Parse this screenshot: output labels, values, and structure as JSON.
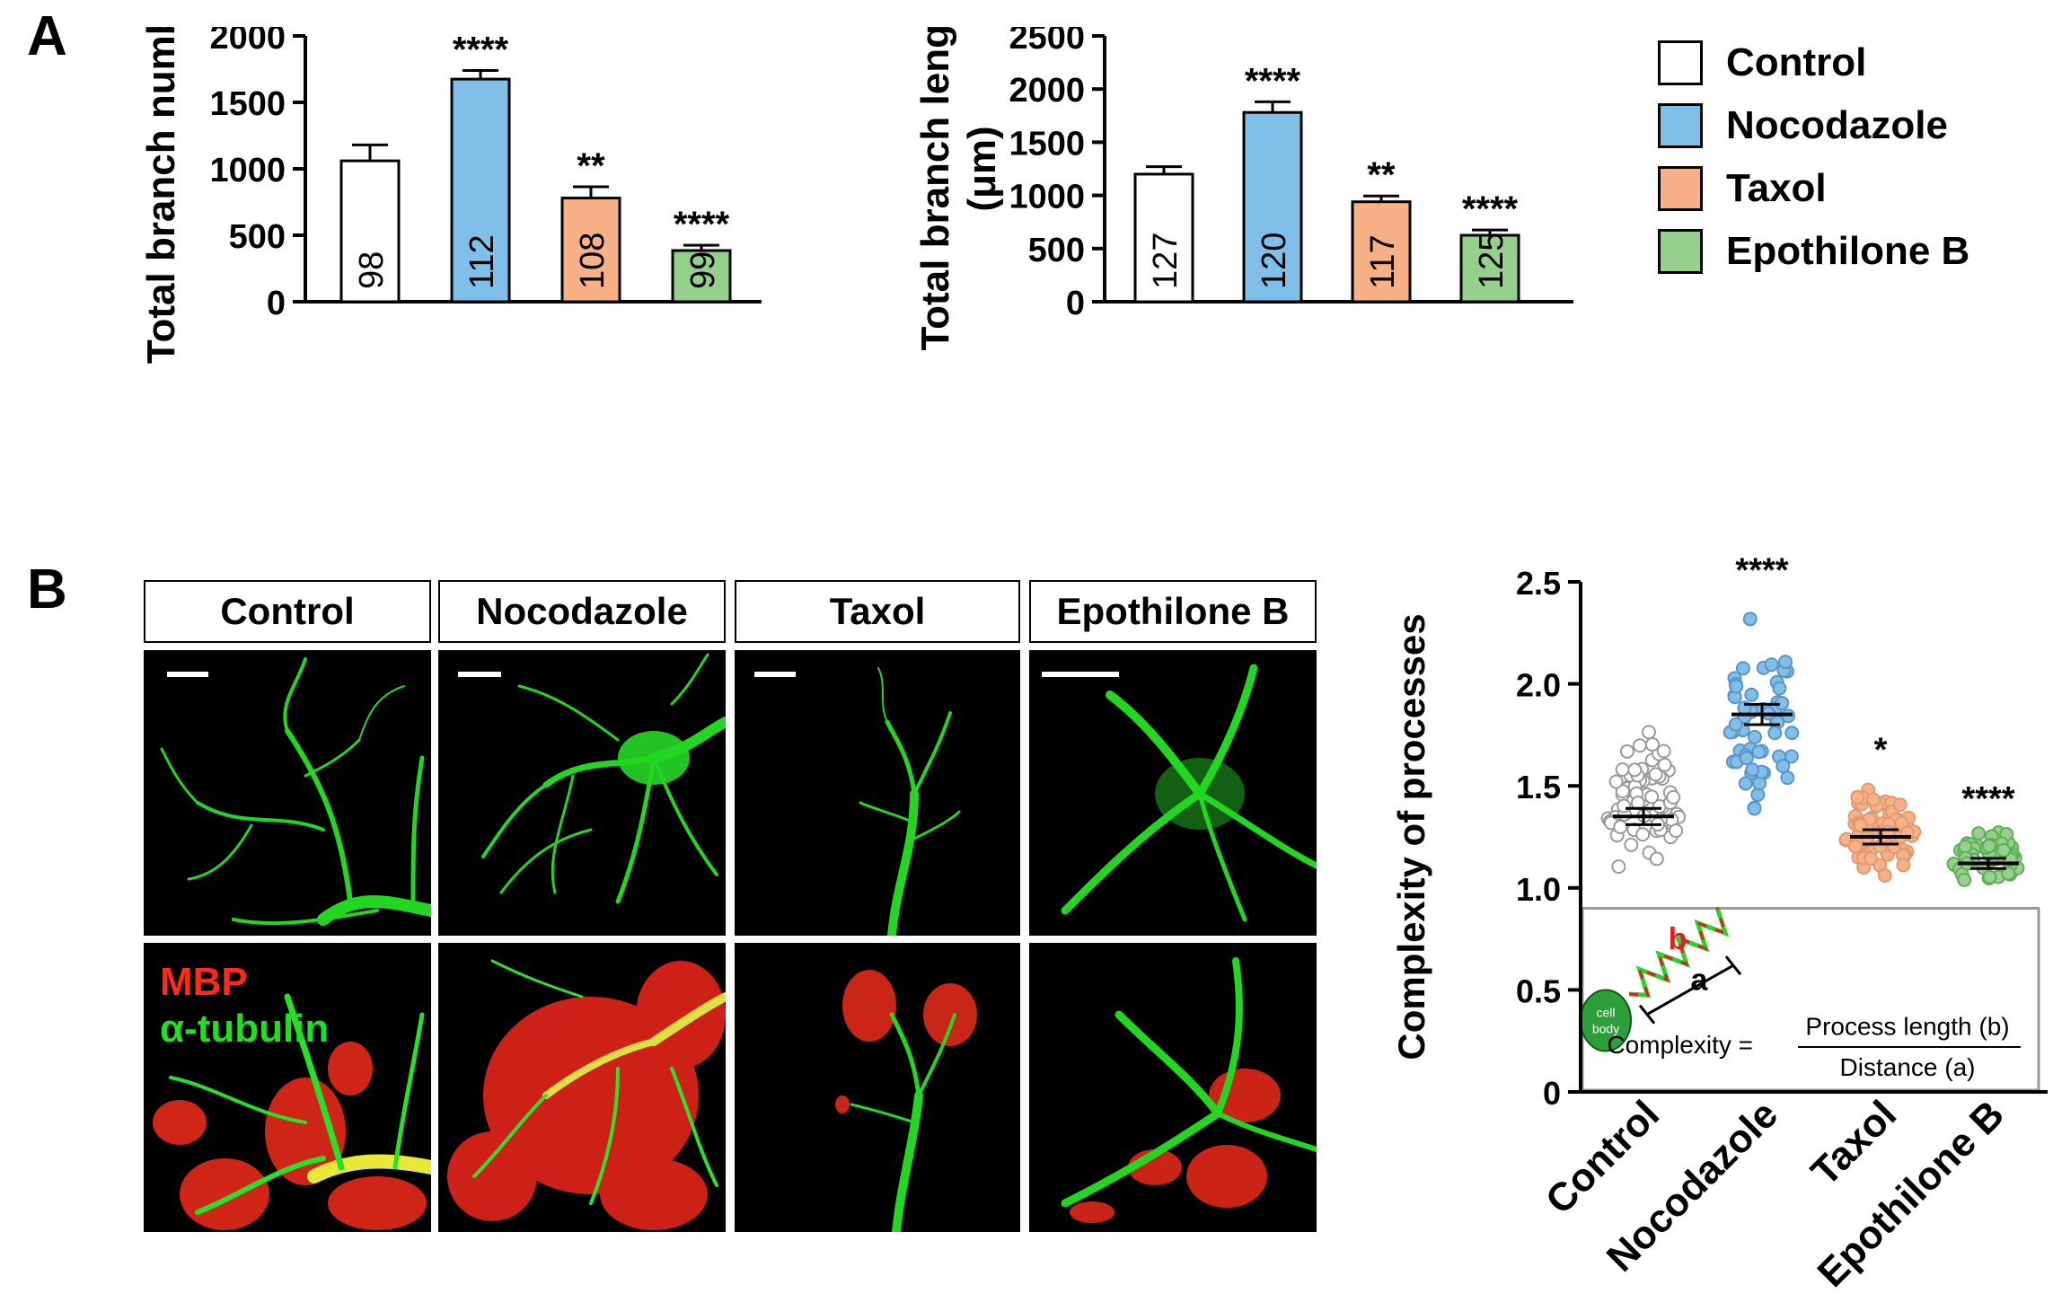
{
  "panel_labels": {
    "a": "A",
    "b": "B"
  },
  "legend": [
    {
      "label": "Control",
      "color": "#ffffff"
    },
    {
      "label": "Nocodazole",
      "color": "#7fbfe8"
    },
    {
      "label": "Taxol",
      "color": "#f8b186"
    },
    {
      "label": "Epothilone B",
      "color": "#95d08d"
    }
  ],
  "micrograph_panel": {
    "headers": [
      "Control",
      "Nocodazole",
      "Taxol",
      "Epothilone B"
    ],
    "stain_labels": {
      "mbp": "MBP",
      "tubulin": "α-tubulin"
    },
    "colors": {
      "mbp": "#ff2a1a",
      "tubulin": "#1fe01f"
    }
  },
  "inset": {
    "cell_body_label": [
      "cell",
      "body"
    ],
    "segment_a": "a",
    "segment_b": "b",
    "formula_lhs": "Complexity =",
    "formula_numerator": "Process length (b)",
    "formula_denominator": "Distance (a)"
  },
  "chart_data": [
    {
      "type": "bar",
      "categories": [
        "Control",
        "Nocodazole",
        "Taxol",
        "Epothilone B"
      ],
      "values": [
        1060,
        1675,
        780,
        385
      ],
      "errors": [
        120,
        65,
        85,
        40
      ],
      "n_labels": [
        "98",
        "112",
        "108",
        "99"
      ],
      "significance": [
        "",
        "****",
        "**",
        "****"
      ],
      "colors": [
        "#ffffff",
        "#7fbfe8",
        "#f8b186",
        "#95d08d"
      ],
      "ylabel": "Total branch number",
      "ylim": [
        0,
        2000
      ],
      "yticks": [
        "0",
        "500",
        "1000",
        "1500",
        "2000"
      ]
    },
    {
      "type": "bar",
      "categories": [
        "Control",
        "Nocodazole",
        "Taxol",
        "Epothilone B"
      ],
      "values": [
        1200,
        1780,
        940,
        625
      ],
      "errors": [
        70,
        100,
        55,
        50
      ],
      "n_labels": [
        "127",
        "120",
        "117",
        "125"
      ],
      "significance": [
        "",
        "****",
        "**",
        "****"
      ],
      "colors": [
        "#ffffff",
        "#7fbfe8",
        "#f8b186",
        "#95d08d"
      ],
      "ylabel": "Total branch length",
      "ylabel2": "(μm)",
      "ylim": [
        0,
        2500
      ],
      "yticks": [
        "0",
        "500",
        "1000",
        "1500",
        "2000",
        "2500"
      ]
    },
    {
      "type": "scatter",
      "categories": [
        "Control",
        "Nocodazole",
        "Taxol",
        "Epothilone B"
      ],
      "means": [
        1.35,
        1.85,
        1.25,
        1.12
      ],
      "sems": [
        0.04,
        0.05,
        0.035,
        0.025
      ],
      "ranges": [
        [
          1.02,
          1.9
        ],
        [
          1.24,
          2.44
        ],
        [
          1.0,
          1.56
        ],
        [
          1.0,
          1.32
        ]
      ],
      "counts": [
        70,
        55,
        75,
        55
      ],
      "significance": [
        "",
        "****",
        "*",
        "****"
      ],
      "colors": [
        "#ffffff",
        "#7fbfe8",
        "#f8b186",
        "#95d08d"
      ],
      "edge_colors": [
        "#9a9a9a",
        "#5a95c6",
        "#e09a72",
        "#5fae57"
      ],
      "ylabel": "Complexity of processes",
      "ylim": [
        0,
        2.5
      ],
      "yticks": [
        "0",
        "0.5",
        "1.0",
        "1.5",
        "2.0",
        "2.5"
      ]
    }
  ]
}
